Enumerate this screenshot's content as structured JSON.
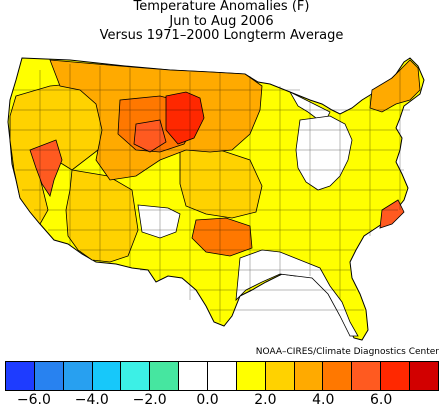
{
  "title": {
    "line1": "Temperature Anomalies (F)",
    "line2": "Jun to Aug 2006",
    "line3": "Versus 1971–2000 Longterm Average"
  },
  "credit": "NOAA–CIRES/Climate Diagnostics Center",
  "legend": {
    "colors": [
      "#1e3cff",
      "#2882f0",
      "#28a0f0",
      "#17c8fa",
      "#3cf0e6",
      "#46e6a0",
      "#ffffff",
      "#ffffff",
      "#ffff00",
      "#ffd200",
      "#ffaa00",
      "#ff7800",
      "#ff5a20",
      "#ff2800",
      "#d20000"
    ],
    "ticks": [
      "−6.0",
      "−4.0",
      "−2.0",
      "0.0",
      "2.0",
      "4.0",
      "6.0"
    ]
  },
  "colors": {
    "border": "#000000",
    "land_default": "#ffffff",
    "warm_light": "#ffff00",
    "warm_mid": "#ffd200",
    "warm_high": "#ffaa00",
    "warm_higher": "#ff7800",
    "warm_strong": "#ff5a20",
    "warm_max": "#ff2800"
  }
}
